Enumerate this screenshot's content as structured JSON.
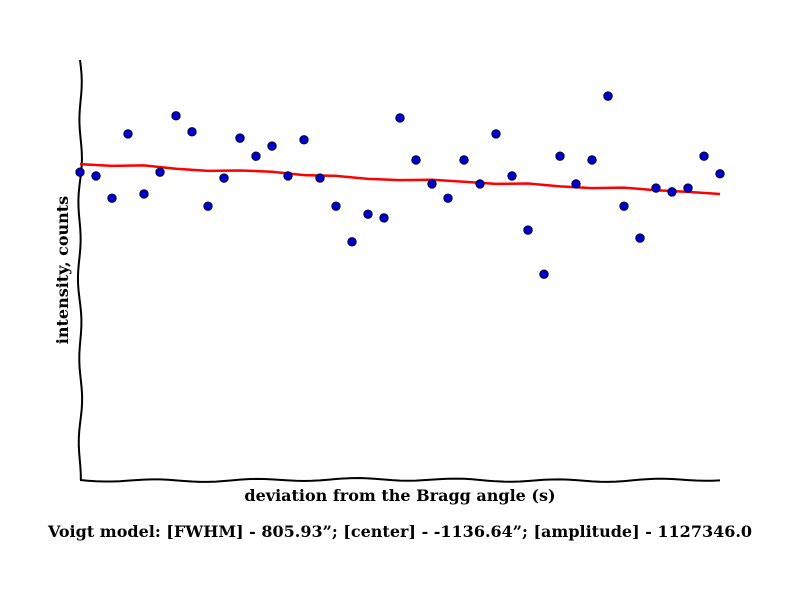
{
  "chart_data": {
    "type": "scatter",
    "title": "",
    "xlabel": "deviation from the Bragg angle (s)",
    "ylabel": "intensity, counts",
    "xlim": [
      0,
      40
    ],
    "ylim": [
      0,
      100
    ],
    "grid": false,
    "tick_labels": false,
    "series": [
      {
        "kind": "points",
        "color": "#0000cc",
        "x": [
          0,
          1,
          2,
          3,
          4,
          5,
          6,
          7,
          8,
          9,
          10,
          11,
          12,
          13,
          14,
          15,
          16,
          17,
          18,
          19,
          20,
          21,
          22,
          23,
          24,
          25,
          26,
          27,
          28,
          29,
          30,
          31,
          32,
          33,
          34,
          35,
          36,
          37,
          38,
          39,
          40
        ],
        "y": [
          73.3,
          72.4,
          67.1,
          82.4,
          68.1,
          73.3,
          86.7,
          82.9,
          65.2,
          71.9,
          81.4,
          77.1,
          79.5,
          72.4,
          81,
          71.9,
          65.2,
          56.7,
          63.3,
          62.4,
          86.2,
          76.2,
          70.5,
          67.1,
          76.2,
          70.5,
          82.4,
          72.4,
          59.5,
          49,
          77.1,
          70.5,
          76.2,
          91.4,
          65.2,
          57.6,
          69.5,
          68.6,
          69.5,
          77.1,
          72.9
        ]
      },
      {
        "kind": "fit",
        "color": "#ff0000",
        "x": [
          0,
          2,
          4,
          6,
          8,
          10,
          12,
          14,
          16,
          18,
          20,
          22,
          24,
          26,
          28,
          30,
          32,
          34,
          36,
          38,
          40
        ],
        "y": [
          75.2,
          74.8,
          74.9,
          74.1,
          73.6,
          73.7,
          73.4,
          72.6,
          72.4,
          71.7,
          71.4,
          71.5,
          71,
          70.5,
          70.6,
          69.9,
          69.5,
          69.6,
          69,
          68.6,
          68.1
        ]
      }
    ]
  },
  "caption": "Voigt model:    [FWHM] - 805.93”; [center] - -1136.64”; [amplitude] - 1127346.0"
}
